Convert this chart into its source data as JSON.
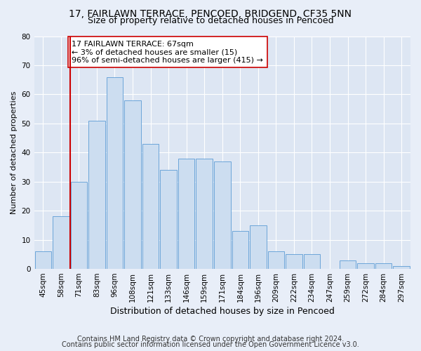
{
  "title1": "17, FAIRLAWN TERRACE, PENCOED, BRIDGEND, CF35 5NN",
  "title2": "Size of property relative to detached houses in Pencoed",
  "xlabel": "Distribution of detached houses by size in Pencoed",
  "ylabel": "Number of detached properties",
  "categories": [
    "45sqm",
    "58sqm",
    "71sqm",
    "83sqm",
    "96sqm",
    "108sqm",
    "121sqm",
    "133sqm",
    "146sqm",
    "159sqm",
    "171sqm",
    "184sqm",
    "196sqm",
    "209sqm",
    "222sqm",
    "234sqm",
    "247sqm",
    "259sqm",
    "272sqm",
    "284sqm",
    "297sqm"
  ],
  "values": [
    6,
    18,
    30,
    51,
    66,
    58,
    43,
    34,
    38,
    38,
    37,
    13,
    15,
    6,
    5,
    5,
    0,
    3,
    2,
    2,
    1
  ],
  "bar_color": "#ccddf0",
  "bar_edge_color": "#5b9bd5",
  "ylim": [
    0,
    80
  ],
  "yticks": [
    0,
    10,
    20,
    30,
    40,
    50,
    60,
    70,
    80
  ],
  "vline_x": 1.5,
  "vline_color": "#cc0000",
  "annotation_text": "17 FAIRLAWN TERRACE: 67sqm\n← 3% of detached houses are smaller (15)\n96% of semi-detached houses are larger (415) →",
  "annotation_box_color": "#ffffff",
  "annotation_box_edge": "#cc0000",
  "footer1": "Contains HM Land Registry data © Crown copyright and database right 2024.",
  "footer2": "Contains public sector information licensed under the Open Government Licence v3.0.",
  "bg_color": "#e8eef8",
  "plot_bg_color": "#dde6f3",
  "title1_fontsize": 10,
  "title2_fontsize": 9,
  "xlabel_fontsize": 9,
  "ylabel_fontsize": 8,
  "tick_fontsize": 7.5,
  "annotation_fontsize": 8,
  "footer_fontsize": 7
}
